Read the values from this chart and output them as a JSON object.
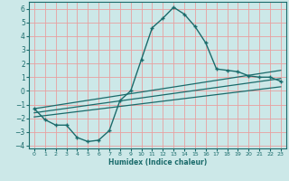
{
  "xlabel": "Humidex (Indice chaleur)",
  "xlim": [
    -0.5,
    23.5
  ],
  "ylim": [
    -4.2,
    6.5
  ],
  "background_color": "#cce8e8",
  "grid_color": "#e8a0a0",
  "line_color": "#1a6b6b",
  "x_ticks": [
    0,
    1,
    2,
    3,
    4,
    5,
    6,
    7,
    8,
    9,
    10,
    11,
    12,
    13,
    14,
    15,
    16,
    17,
    18,
    19,
    20,
    21,
    22,
    23
  ],
  "y_ticks": [
    -4,
    -3,
    -2,
    -1,
    0,
    1,
    2,
    3,
    4,
    5,
    6
  ],
  "series1_x": [
    0,
    1,
    2,
    3,
    4,
    5,
    6,
    7,
    8,
    9,
    10,
    11,
    12,
    13,
    14,
    15,
    16,
    17,
    18,
    19,
    20,
    21,
    22,
    23
  ],
  "series1_y": [
    -1.3,
    -2.1,
    -2.5,
    -2.5,
    -3.4,
    -3.7,
    -3.6,
    -2.9,
    -0.7,
    0.0,
    2.3,
    4.6,
    5.3,
    6.1,
    5.6,
    4.7,
    3.5,
    1.6,
    1.5,
    1.4,
    1.1,
    1.0,
    1.0,
    0.7
  ],
  "series2_x": [
    0,
    23
  ],
  "series2_y": [
    -1.3,
    1.5
  ],
  "series3_x": [
    0,
    23
  ],
  "series3_y": [
    -1.6,
    0.9
  ],
  "series4_x": [
    0,
    23
  ],
  "series4_y": [
    -1.9,
    0.3
  ]
}
